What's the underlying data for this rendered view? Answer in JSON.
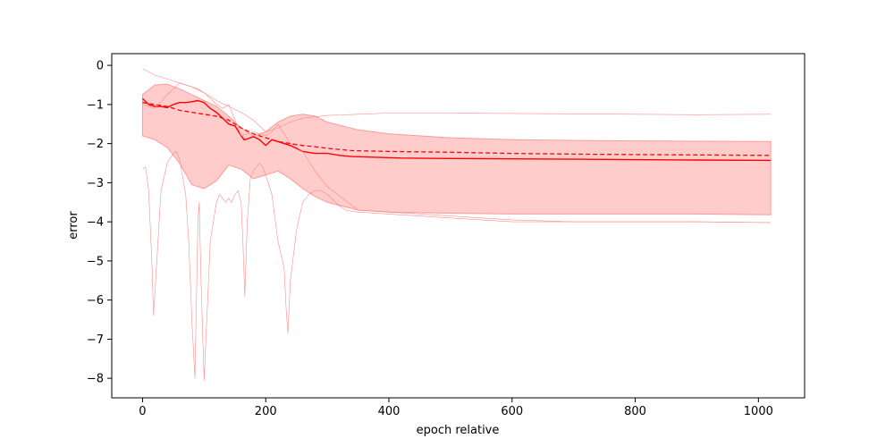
{
  "chart_data": {
    "type": "line",
    "title": "",
    "xlabel": "epoch relative",
    "ylabel": "error",
    "xlim": [
      -50,
      1075
    ],
    "ylim": [
      -8.5,
      0.3
    ],
    "xticks": [
      0,
      200,
      400,
      600,
      800,
      1000
    ],
    "yticks": [
      0,
      -1,
      -2,
      -3,
      -4,
      -5,
      -6,
      -7,
      -8
    ],
    "grid": false,
    "legend": "none",
    "colors": {
      "line": "#ff0000",
      "band_fill": "#ffcccc",
      "band_edge": "#ff9999",
      "envelope": "#ff8080"
    },
    "band": {
      "x": [
        0,
        20,
        40,
        60,
        80,
        100,
        120,
        140,
        160,
        180,
        200,
        220,
        240,
        260,
        280,
        300,
        350,
        400,
        500,
        600,
        700,
        800,
        900,
        1020
      ],
      "upper": [
        -0.75,
        -0.5,
        -0.48,
        -0.6,
        -0.75,
        -0.9,
        -1.05,
        -1.3,
        -1.6,
        -1.8,
        -1.7,
        -1.45,
        -1.3,
        -1.25,
        -1.3,
        -1.45,
        -1.65,
        -1.75,
        -1.85,
        -1.9,
        -1.92,
        -1.93,
        -1.94,
        -1.95
      ],
      "lower": [
        -1.8,
        -1.9,
        -2.1,
        -2.5,
        -3.05,
        -3.15,
        -2.95,
        -2.55,
        -2.65,
        -2.9,
        -2.8,
        -2.7,
        -2.9,
        -3.15,
        -3.35,
        -3.5,
        -3.7,
        -3.75,
        -3.78,
        -3.8,
        -3.8,
        -3.8,
        -3.8,
        -3.82
      ]
    },
    "series": [
      {
        "style": "solid",
        "x": [
          0,
          10,
          20,
          30,
          40,
          50,
          60,
          70,
          80,
          90,
          100,
          110,
          120,
          130,
          140,
          150,
          160,
          165,
          170,
          180,
          190,
          200,
          210,
          220,
          240,
          260,
          280,
          300,
          320,
          340,
          380,
          420,
          500,
          600,
          700,
          800,
          900,
          1020
        ],
        "y": [
          -0.85,
          -1.0,
          -1.05,
          -1.05,
          -1.08,
          -1.0,
          -0.95,
          -0.95,
          -0.93,
          -0.9,
          -0.95,
          -1.1,
          -1.2,
          -1.35,
          -1.5,
          -1.55,
          -1.8,
          -1.9,
          -1.88,
          -1.82,
          -1.9,
          -2.05,
          -1.9,
          -1.95,
          -2.05,
          -2.2,
          -2.25,
          -2.25,
          -2.3,
          -2.33,
          -2.35,
          -2.37,
          -2.38,
          -2.39,
          -2.4,
          -2.41,
          -2.42,
          -2.43
        ]
      },
      {
        "style": "dashed",
        "x": [
          0,
          20,
          40,
          60,
          80,
          100,
          120,
          140,
          160,
          180,
          200,
          220,
          240,
          260,
          280,
          300,
          340,
          400,
          500,
          600,
          700,
          800,
          900,
          1020
        ],
        "y": [
          -0.95,
          -1.0,
          -1.05,
          -1.15,
          -1.2,
          -1.25,
          -1.3,
          -1.4,
          -1.6,
          -1.75,
          -1.85,
          -1.95,
          -2.0,
          -2.05,
          -2.08,
          -2.12,
          -2.18,
          -2.2,
          -2.22,
          -2.25,
          -2.27,
          -2.28,
          -2.29,
          -2.3
        ]
      },
      {
        "style": "thin",
        "x": [
          0,
          20,
          40,
          60,
          80,
          100,
          120,
          140,
          160,
          180,
          200,
          220,
          240,
          260,
          300,
          350,
          400,
          500,
          600,
          700,
          800,
          900,
          1020
        ],
        "y": [
          -0.08,
          -0.25,
          -0.35,
          -0.45,
          -0.55,
          -0.7,
          -0.9,
          -1.05,
          -1.2,
          -1.4,
          -1.7,
          -1.6,
          -1.45,
          -1.35,
          -1.28,
          -1.25,
          -1.22,
          -1.22,
          -1.23,
          -1.24,
          -1.25,
          -1.26,
          -1.25
        ]
      },
      {
        "style": "thin",
        "x": [
          0,
          20,
          40,
          60,
          70,
          80,
          90,
          100,
          110,
          120,
          130,
          140,
          150,
          160,
          170,
          180,
          190,
          200,
          210,
          220,
          240,
          260,
          280,
          300,
          350,
          400,
          500,
          600,
          700,
          800,
          900,
          1020
        ],
        "y": [
          -1.0,
          -1.1,
          -0.75,
          -0.45,
          -0.5,
          -0.55,
          -0.6,
          -0.7,
          -0.85,
          -1.0,
          -1.1,
          -1.0,
          -1.4,
          -1.8,
          -1.75,
          -1.7,
          -1.75,
          -1.8,
          -1.7,
          -1.5,
          -2.0,
          -2.2,
          -2.7,
          -3.1,
          -3.7,
          -3.75,
          -3.85,
          -3.95,
          -4.0,
          -4.0,
          -4.0,
          -4.02
        ]
      },
      {
        "style": "thin",
        "x": [
          0,
          5,
          10,
          15,
          18,
          25,
          30,
          40,
          50,
          55,
          60,
          70,
          75,
          80,
          85,
          90,
          92,
          95,
          100,
          110,
          120,
          125,
          130,
          135,
          140,
          145,
          150,
          155,
          160,
          163,
          166,
          170,
          175,
          180,
          185,
          190,
          195,
          200,
          210,
          220,
          230,
          233,
          236,
          240,
          250,
          260,
          270,
          280,
          290,
          300,
          310,
          320,
          330,
          340,
          350,
          370,
          400,
          500,
          600,
          700,
          800,
          900,
          1020
        ],
        "y": [
          -2.65,
          -2.6,
          -3.2,
          -5.0,
          -6.4,
          -4.5,
          -3.2,
          -2.5,
          -2.25,
          -2.2,
          -2.4,
          -3.3,
          -4.5,
          -6.5,
          -8.0,
          -4.0,
          -3.5,
          -5.5,
          -8.05,
          -4.5,
          -3.5,
          -3.3,
          -3.4,
          -3.5,
          -3.4,
          -3.5,
          -3.3,
          -3.2,
          -3.5,
          -4.5,
          -5.9,
          -4.0,
          -2.9,
          -2.7,
          -2.6,
          -2.5,
          -2.6,
          -2.8,
          -3.3,
          -4.5,
          -5.2,
          -6.2,
          -6.85,
          -5.5,
          -4.2,
          -3.5,
          -3.3,
          -3.2,
          -3.2,
          -3.3,
          -3.45,
          -3.6,
          -3.7,
          -3.73,
          -3.75,
          -3.77,
          -3.8,
          -3.9,
          -4.0,
          -4.0,
          -4.0,
          -4.0,
          -4.02
        ]
      }
    ]
  }
}
